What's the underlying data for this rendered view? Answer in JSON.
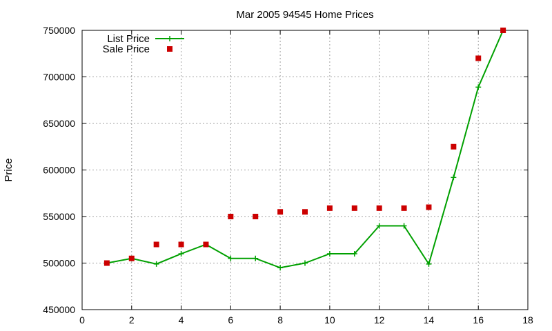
{
  "chart_data": {
    "type": "line",
    "title": "Mar 2005 94545 Home Prices",
    "xlabel": "",
    "ylabel": "Price",
    "xlim": [
      0,
      18
    ],
    "ylim": [
      450000,
      750000
    ],
    "x_ticks": [
      0,
      2,
      4,
      6,
      8,
      10,
      12,
      14,
      16,
      18
    ],
    "y_ticks": [
      450000,
      500000,
      550000,
      600000,
      650000,
      700000,
      750000
    ],
    "grid": true,
    "legend_position": "top-left",
    "series": [
      {
        "name": "List Price",
        "style": "line-with-plus-markers",
        "color": "#00a000",
        "x": [
          1,
          2,
          3,
          4,
          5,
          6,
          7,
          8,
          9,
          10,
          11,
          12,
          13,
          14,
          15,
          16,
          17
        ],
        "values": [
          500000,
          505000,
          499000,
          510000,
          520000,
          505000,
          505000,
          495000,
          500000,
          510000,
          510000,
          540000,
          540000,
          499000,
          592000,
          689000,
          750000
        ]
      },
      {
        "name": "Sale Price",
        "style": "square-points",
        "color": "#cc0000",
        "x": [
          1,
          2,
          3,
          4,
          5,
          6,
          7,
          8,
          9,
          10,
          11,
          12,
          13,
          14,
          15,
          16,
          17
        ],
        "values": [
          500000,
          505000,
          520000,
          520000,
          520000,
          550000,
          550000,
          555000,
          555000,
          559000,
          559000,
          559000,
          559000,
          560000,
          625000,
          720000,
          750000
        ]
      }
    ]
  }
}
